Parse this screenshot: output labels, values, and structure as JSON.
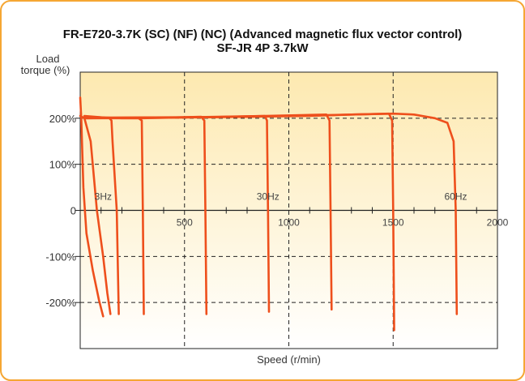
{
  "title_line1": "FR-E720-3.7K (SC) (NF) (NC) (Advanced magnetic flux vector control)",
  "title_line2": "SF-JR 4P 3.7kW",
  "colors": {
    "frame": "#f5a633",
    "plot_top": "#fde9b0",
    "plot_bottom": "#ffffff",
    "curve": "#ee4f1c",
    "curve_light": "#f69a3c",
    "grid": "#222222"
  },
  "chart_data": {
    "type": "line",
    "title": "FR-E720-3.7K (SC) (NF) (NC) (Advanced magnetic flux vector control) SF-JR 4P 3.7kW",
    "xlabel": "Speed (r/min)",
    "ylabel": "Load torque (%)",
    "xlim": [
      0,
      2000
    ],
    "ylim": [
      -300,
      300
    ],
    "x_ticks": [
      500,
      1000,
      1500,
      2000
    ],
    "y_ticks": [
      {
        "value": 200,
        "label": "200%"
      },
      {
        "value": 100,
        "label": "100%"
      },
      {
        "value": 0,
        "label": "0"
      },
      {
        "value": -100,
        "label": "-100%"
      },
      {
        "value": -200,
        "label": "-200%"
      }
    ],
    "grid": true,
    "annotations": [
      {
        "text": "3Hz",
        "x": 110,
        "y": 23
      },
      {
        "text": "30Hz",
        "x": 900,
        "y": 23
      },
      {
        "text": "60Hz",
        "x": 1800,
        "y": 23
      }
    ],
    "series": [
      {
        "x": [
          0,
          5,
          15,
          30,
          60,
          90,
          110
        ],
        "y": [
          245,
          200,
          50,
          -50,
          -130,
          -195,
          -230
        ]
      },
      {
        "x": [
          0,
          20,
          50,
          80,
          110,
          130,
          145
        ],
        "y": [
          205,
          200,
          150,
          0,
          -100,
          -180,
          -225
        ]
      },
      {
        "x": [
          20,
          100,
          140,
          150,
          155,
          175,
          185
        ],
        "y": [
          205,
          202,
          200,
          195,
          150,
          0,
          -225
        ]
      },
      {
        "x": [
          20,
          200,
          280,
          295,
          300,
          305
        ],
        "y": [
          203,
          200,
          200,
          195,
          0,
          -225
        ]
      },
      {
        "x": [
          20,
          300,
          580,
          595,
          600,
          605
        ],
        "y": [
          200,
          200,
          203,
          195,
          0,
          -225
        ]
      },
      {
        "x": [
          20,
          400,
          885,
          895,
          900,
          905
        ],
        "y": [
          200,
          201,
          205,
          195,
          0,
          -220
        ]
      },
      {
        "x": [
          20,
          600,
          1180,
          1195,
          1200,
          1205
        ],
        "y": [
          201,
          202,
          208,
          195,
          0,
          -215
        ]
      },
      {
        "x": [
          20,
          800,
          1200,
          1480,
          1495,
          1500,
          1505
        ],
        "y": [
          201,
          203,
          207,
          210,
          195,
          0,
          -260
        ]
      },
      {
        "x": [
          20,
          600,
          1100,
          1300,
          1500,
          1600,
          1700,
          1760,
          1790,
          1800,
          1805
        ],
        "y": [
          200,
          202,
          205,
          208,
          210,
          208,
          200,
          190,
          150,
          0,
          -225
        ]
      }
    ]
  }
}
